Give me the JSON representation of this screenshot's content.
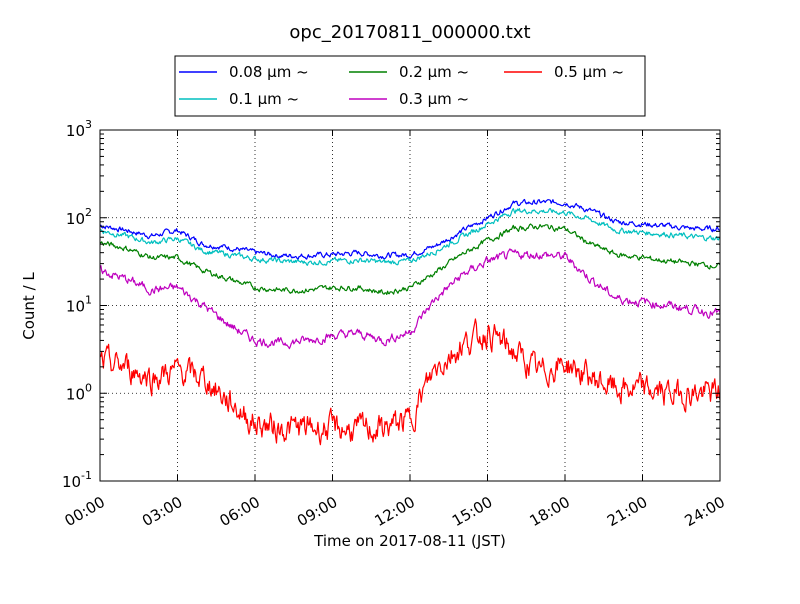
{
  "chart_data": {
    "type": "line",
    "title": "opc_20170811_000000.txt",
    "xlabel": "Time on 2017-08-11 (JST)",
    "ylabel": "Count / L",
    "yscale": "log",
    "ylim": [
      0.1,
      1000
    ],
    "xlim": [
      "2017-08-11 00:00",
      "2017-08-12 00:00"
    ],
    "grid": true,
    "legend_position": "top-center",
    "x_ticks": [
      "00:00",
      "03:00",
      "06:00",
      "09:00",
      "12:00",
      "15:00",
      "18:00",
      "21:00",
      "24:00"
    ],
    "y_ticks": [
      {
        "base": "10",
        "exp": "-1"
      },
      {
        "base": "10",
        "exp": "0"
      },
      {
        "base": "10",
        "exp": "1"
      },
      {
        "base": "10",
        "exp": "2"
      },
      {
        "base": "10",
        "exp": "3"
      }
    ],
    "x": [
      "00:00",
      "01:00",
      "02:00",
      "03:00",
      "04:00",
      "05:00",
      "06:00",
      "07:00",
      "08:00",
      "09:00",
      "10:00",
      "11:00",
      "12:00",
      "13:00",
      "14:00",
      "15:00",
      "16:00",
      "17:00",
      "18:00",
      "19:00",
      "20:00",
      "21:00",
      "22:00",
      "23:00",
      "24:00"
    ],
    "series": [
      {
        "name": "0.08 μm ~",
        "color": "#0000ff",
        "values": [
          82,
          72,
          62,
          72,
          50,
          46,
          40,
          37,
          37,
          38,
          40,
          37,
          38,
          48,
          70,
          100,
          145,
          150,
          150,
          120,
          90,
          85,
          80,
          75,
          75
        ]
      },
      {
        "name": "0.1 μm ~",
        "color": "#00bfbf",
        "values": [
          72,
          62,
          52,
          58,
          42,
          38,
          34,
          32,
          31,
          32,
          33,
          31,
          32,
          42,
          60,
          85,
          120,
          120,
          115,
          95,
          72,
          68,
          65,
          60,
          58
        ]
      },
      {
        "name": "0.2 μm ~",
        "color": "#008000",
        "values": [
          52,
          45,
          35,
          35,
          25,
          20,
          16,
          15,
          15,
          16,
          16,
          14,
          16,
          24,
          38,
          55,
          75,
          80,
          75,
          50,
          38,
          35,
          32,
          30,
          28
        ]
      },
      {
        "name": "0.3 μm ~",
        "color": "#bf00bf",
        "values": [
          25,
          20,
          15,
          16,
          10,
          6,
          4,
          3.7,
          4,
          4.5,
          4.8,
          4,
          5,
          12,
          22,
          32,
          38,
          38,
          36,
          20,
          12,
          11,
          10,
          9,
          8
        ]
      },
      {
        "name": "0.5 μm ~",
        "color": "#ff0000",
        "values": [
          2.2,
          2.0,
          1.5,
          1.8,
          1.5,
          0.8,
          0.45,
          0.4,
          0.4,
          0.4,
          0.38,
          0.4,
          0.5,
          2.0,
          3.5,
          5.0,
          3.0,
          1.7,
          2.2,
          1.5,
          1.1,
          1.1,
          1.0,
          1.0,
          1.0
        ]
      }
    ]
  }
}
